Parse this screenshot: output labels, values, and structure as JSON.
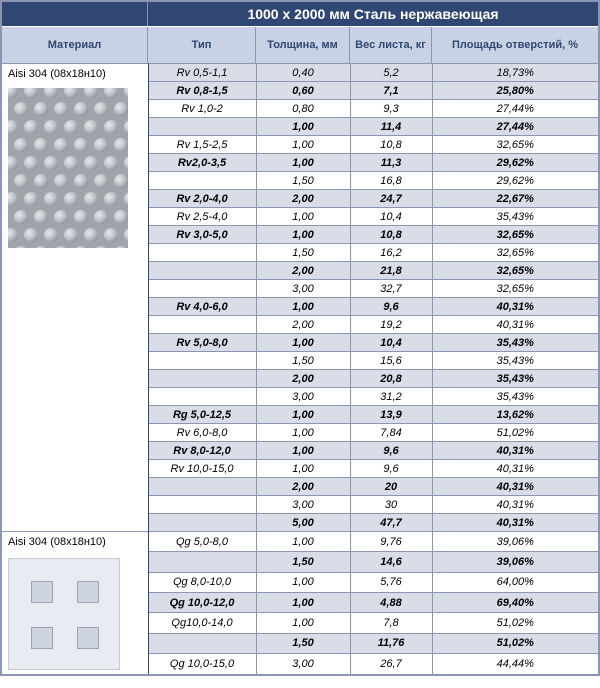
{
  "title": "1000 x 2000 мм Сталь нержавеющая",
  "columns": {
    "material": "Материал",
    "type": "Тип",
    "thickness": "Толщина, мм",
    "weight": "Вес листа, кг",
    "area": "Площадь отверстий, %"
  },
  "colors": {
    "header_bg": "#2f4772",
    "subheader_bg": "#c9d2e4",
    "shaded_bg": "#d8dde8",
    "border": "#8a96b4"
  },
  "groups": [
    {
      "material": "Aisi 304 (08х18н10)",
      "image": "perforated-round",
      "rows": [
        {
          "type": "Rv 0,5-1,1",
          "th": "0,40",
          "wt": "5,2",
          "area": "18,73%",
          "shaded": true,
          "bold": false
        },
        {
          "type": "Rv 0,8-1,5",
          "th": "0,60",
          "wt": "7,1",
          "area": "25,80%",
          "shaded": true,
          "bold": true
        },
        {
          "type": "Rv 1,0-2",
          "th": "0,80",
          "wt": "9,3",
          "area": "27,44%",
          "shaded": false,
          "bold": false
        },
        {
          "type": "",
          "th": "1,00",
          "wt": "11,4",
          "area": "27,44%",
          "shaded": true,
          "bold": true
        },
        {
          "type": "Rv 1,5-2,5",
          "th": "1,00",
          "wt": "10,8",
          "area": "32,65%",
          "shaded": false,
          "bold": false
        },
        {
          "type": "Rv2,0-3,5",
          "th": "1,00",
          "wt": "11,3",
          "area": "29,62%",
          "shaded": true,
          "bold": true
        },
        {
          "type": "",
          "th": "1,50",
          "wt": "16,8",
          "area": "29,62%",
          "shaded": false,
          "bold": false
        },
        {
          "type": "Rv 2,0-4,0",
          "th": "2,00",
          "wt": "24,7",
          "area": "22,67%",
          "shaded": true,
          "bold": true
        },
        {
          "type": "Rv 2,5-4,0",
          "th": "1,00",
          "wt": "10,4",
          "area": "35,43%",
          "shaded": false,
          "bold": false
        },
        {
          "type": "Rv 3,0-5,0",
          "th": "1,00",
          "wt": "10,8",
          "area": "32,65%",
          "shaded": true,
          "bold": true
        },
        {
          "type": "",
          "th": "1,50",
          "wt": "16,2",
          "area": "32,65%",
          "shaded": false,
          "bold": false
        },
        {
          "type": "",
          "th": "2,00",
          "wt": "21,8",
          "area": "32,65%",
          "shaded": true,
          "bold": true
        },
        {
          "type": "",
          "th": "3,00",
          "wt": "32,7",
          "area": "32,65%",
          "shaded": false,
          "bold": false
        },
        {
          "type": "Rv 4,0-6,0",
          "th": "1,00",
          "wt": "9,6",
          "area": "40,31%",
          "shaded": true,
          "bold": true
        },
        {
          "type": "",
          "th": "2,00",
          "wt": "19,2",
          "area": "40,31%",
          "shaded": false,
          "bold": false
        },
        {
          "type": "Rv 5,0-8,0",
          "th": "1,00",
          "wt": "10,4",
          "area": "35,43%",
          "shaded": true,
          "bold": true
        },
        {
          "type": "",
          "th": "1,50",
          "wt": "15,6",
          "area": "35,43%",
          "shaded": false,
          "bold": false
        },
        {
          "type": "",
          "th": "2,00",
          "wt": "20,8",
          "area": "35,43%",
          "shaded": true,
          "bold": true
        },
        {
          "type": "",
          "th": "3,00",
          "wt": "31,2",
          "area": "35,43%",
          "shaded": false,
          "bold": false
        },
        {
          "type": "Rg 5,0-12,5",
          "th": "1,00",
          "wt": "13,9",
          "area": "13,62%",
          "shaded": true,
          "bold": true
        },
        {
          "type": "Rv 6,0-8,0",
          "th": "1,00",
          "wt": "7,84",
          "area": "51,02%",
          "shaded": false,
          "bold": false
        },
        {
          "type": "Rv 8,0-12,0",
          "th": "1,00",
          "wt": "9,6",
          "area": "40,31%",
          "shaded": true,
          "bold": true
        },
        {
          "type": "Rv 10,0-15,0",
          "th": "1,00",
          "wt": "9,6",
          "area": "40,31%",
          "shaded": false,
          "bold": false
        },
        {
          "type": "",
          "th": "2,00",
          "wt": "20",
          "area": "40,31%",
          "shaded": true,
          "bold": true
        },
        {
          "type": "",
          "th": "3,00",
          "wt": "30",
          "area": "40,31%",
          "shaded": false,
          "bold": false
        },
        {
          "type": "",
          "th": "5,00",
          "wt": "47,7",
          "area": "40,31%",
          "shaded": true,
          "bold": true
        }
      ]
    },
    {
      "material": "Aisi 304 (08х18н10)",
      "image": "perforated-square",
      "rows": [
        {
          "type": "Qg 5,0-8,0",
          "th": "1,00",
          "wt": "9,76",
          "area": "39,06%",
          "shaded": false,
          "bold": false
        },
        {
          "type": "",
          "th": "1,50",
          "wt": "14,6",
          "area": "39,06%",
          "shaded": true,
          "bold": true
        },
        {
          "type": "Qg 8,0-10,0",
          "th": "1,00",
          "wt": "5,76",
          "area": "64,00%",
          "shaded": false,
          "bold": false
        },
        {
          "type": "Qg 10,0-12,0",
          "th": "1,00",
          "wt": "4,88",
          "area": "69,40%",
          "shaded": true,
          "bold": true
        },
        {
          "type": "Qg10,0-14,0",
          "th": "1,00",
          "wt": "7,8",
          "area": "51,02%",
          "shaded": false,
          "bold": false
        },
        {
          "type": "",
          "th": "1,50",
          "wt": "11,76",
          "area": "51,02%",
          "shaded": true,
          "bold": true
        },
        {
          "type": "Qg 10,0-15,0",
          "th": "3,00",
          "wt": "26,7",
          "area": "44,44%",
          "shaded": false,
          "bold": false
        }
      ]
    }
  ]
}
